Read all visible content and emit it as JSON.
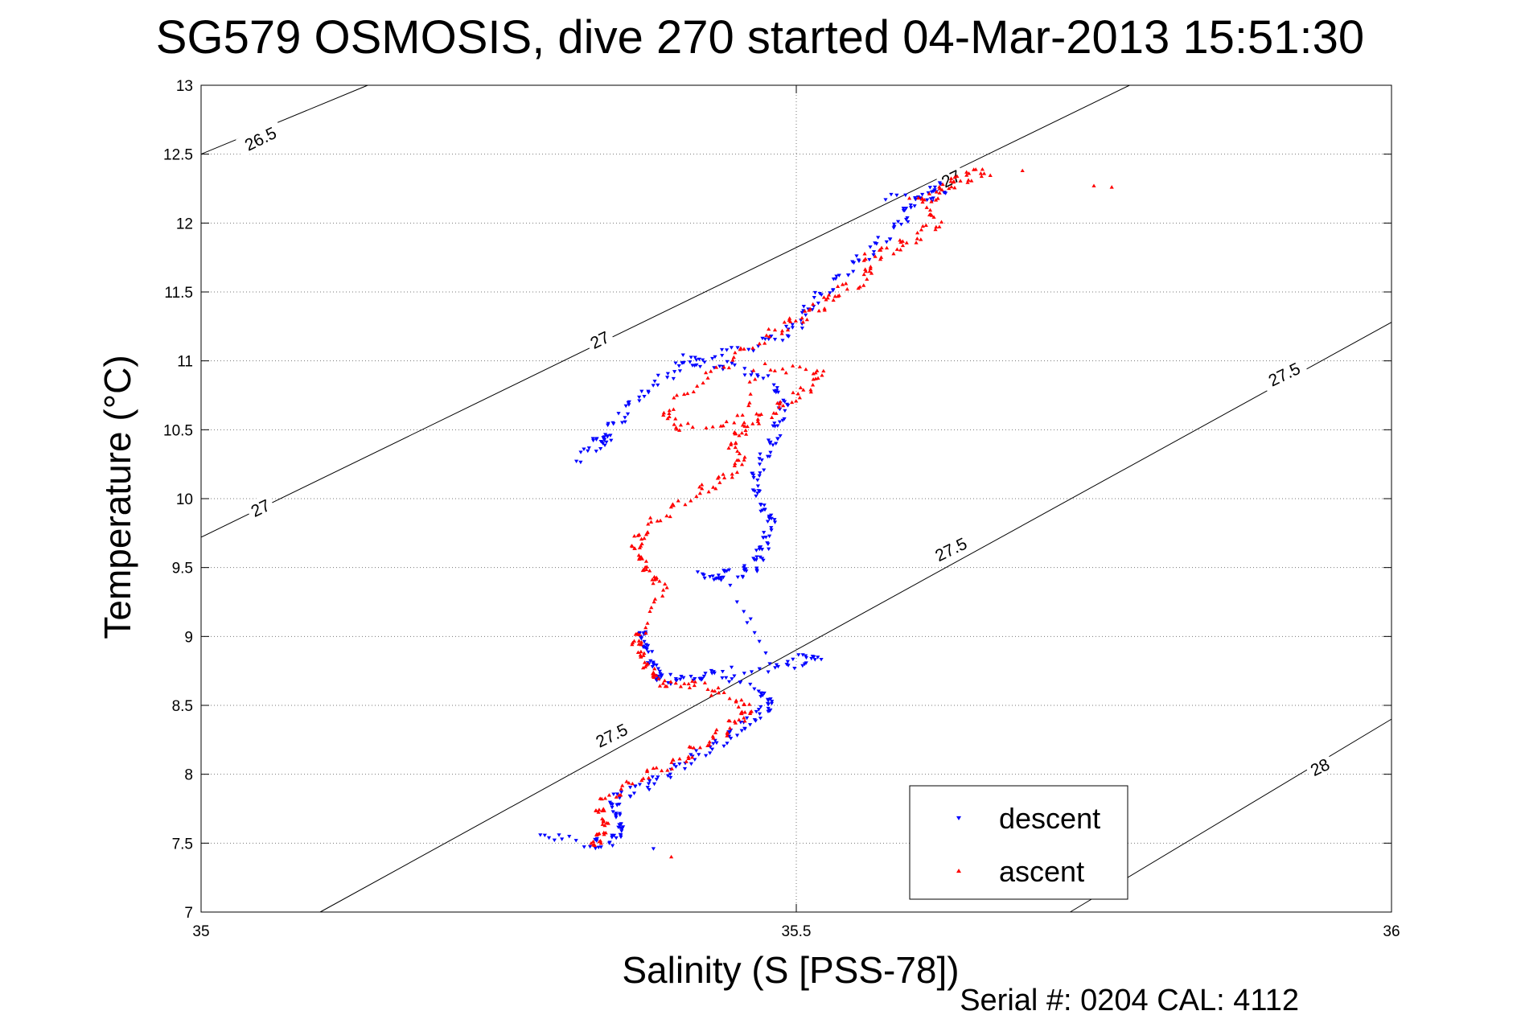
{
  "chart_data": {
    "type": "scatter",
    "title": "SG579 OSMOSIS, dive 270 started 04-Mar-2013 15:51:30",
    "xlabel": "Salinity (S [PSS-78])",
    "ylabel": "Temperature (°C)",
    "xlim": [
      35,
      36
    ],
    "ylim": [
      7,
      13
    ],
    "xticks": [
      35,
      35.5,
      36
    ],
    "xtick_labels": [
      "35",
      "35.5",
      "36"
    ],
    "yticks": [
      7,
      7.5,
      8,
      8.5,
      9,
      9.5,
      10,
      10.5,
      11,
      11.5,
      12,
      12.5,
      13
    ],
    "ytick_labels": [
      "7",
      "7.5",
      "8",
      "8.5",
      "9",
      "9.5",
      "10",
      "10.5",
      "11",
      "11.5",
      "12",
      "12.5",
      "13"
    ],
    "grid": true,
    "legend": "bottom-right",
    "footer": "Serial #: 0204  CAL: 4112",
    "density_contours": {
      "color": "#000000",
      "lines": [
        {
          "level": "26.5",
          "points": [
            [
              35.0,
              12.5
            ],
            [
              35.14,
              13.0
            ]
          ]
        },
        {
          "level": "27",
          "points": [
            [
              35.0,
              9.72
            ],
            [
              35.78,
              13.0
            ]
          ]
        },
        {
          "level": "27.5",
          "points": [
            [
              35.1,
              7.0
            ],
            [
              36.0,
              11.28
            ]
          ]
        },
        {
          "level": "28",
          "points": [
            [
              35.73,
              7.0
            ],
            [
              36.0,
              8.4
            ]
          ]
        }
      ],
      "labels": [
        {
          "text": "26.5",
          "x": 35.05,
          "y": 12.61,
          "angle": -26
        },
        {
          "text": "27",
          "x": 35.05,
          "y": 9.93,
          "angle": -26
        },
        {
          "text": "27",
          "x": 35.335,
          "y": 11.15,
          "angle": -26
        },
        {
          "text": "27",
          "x": 35.63,
          "y": 12.32,
          "angle": -26
        },
        {
          "text": "27.5",
          "x": 35.345,
          "y": 8.28,
          "angle": -26
        },
        {
          "text": "27.5",
          "x": 35.63,
          "y": 9.63,
          "angle": -26
        },
        {
          "text": "27.5",
          "x": 35.91,
          "y": 10.9,
          "angle": -26
        },
        {
          "text": "28",
          "x": 35.94,
          "y": 8.05,
          "angle": -26
        }
      ]
    },
    "series": [
      {
        "name": "descent",
        "color": "#0000ff",
        "marker": "triangle-down",
        "path": [
          [
            35.285,
            7.56
          ],
          [
            35.33,
            7.49
          ],
          [
            35.345,
            7.52
          ],
          [
            35.355,
            7.6
          ],
          [
            35.35,
            7.7
          ],
          [
            35.345,
            7.8
          ],
          [
            35.36,
            7.87
          ],
          [
            35.38,
            7.95
          ],
          [
            35.4,
            8.05
          ],
          [
            35.42,
            8.15
          ],
          [
            35.44,
            8.25
          ],
          [
            35.455,
            8.35
          ],
          [
            35.47,
            8.45
          ],
          [
            35.48,
            8.52
          ],
          [
            35.47,
            8.6
          ],
          [
            35.44,
            8.72
          ],
          [
            35.41,
            8.7
          ],
          [
            35.385,
            8.68
          ],
          [
            35.378,
            8.8
          ],
          [
            35.372,
            8.95
          ],
          [
            35.37,
            9.05
          ],
          [
            35.385,
            8.68
          ],
          [
            35.44,
            8.74
          ],
          [
            35.5,
            8.8
          ],
          [
            35.52,
            8.86
          ],
          [
            35.48,
            8.8
          ],
          [
            35.44,
            9.42
          ],
          [
            35.42,
            9.45
          ],
          [
            35.45,
            9.46
          ],
          [
            35.465,
            9.5
          ],
          [
            35.47,
            9.6
          ],
          [
            35.475,
            9.72
          ],
          [
            35.48,
            9.85
          ],
          [
            35.47,
            9.95
          ],
          [
            35.465,
            10.1
          ],
          [
            35.47,
            10.25
          ],
          [
            35.48,
            10.4
          ],
          [
            35.485,
            10.55
          ],
          [
            35.49,
            10.7
          ],
          [
            35.48,
            10.85
          ],
          [
            35.45,
            10.95
          ],
          [
            35.42,
            11.0
          ],
          [
            35.4,
            10.95
          ],
          [
            35.37,
            10.75
          ],
          [
            35.35,
            10.55
          ],
          [
            35.33,
            10.4
          ],
          [
            35.345,
            10.45
          ],
          [
            35.315,
            10.28
          ],
          [
            35.4,
            11.0
          ],
          [
            35.44,
            11.05
          ],
          [
            35.48,
            11.15
          ],
          [
            35.5,
            11.25
          ],
          [
            35.51,
            11.4
          ],
          [
            35.53,
            11.55
          ],
          [
            35.55,
            11.7
          ],
          [
            35.57,
            11.85
          ],
          [
            35.59,
            12.0
          ],
          [
            35.595,
            12.15
          ],
          [
            35.615,
            12.2
          ],
          [
            35.625,
            12.27
          ],
          [
            35.575,
            12.17
          ]
        ],
        "extra": [
          [
            35.285,
            7.56
          ],
          [
            35.38,
            7.46
          ]
        ]
      },
      {
        "name": "ascent",
        "color": "#ff0000",
        "marker": "triangle-up",
        "path": [
          [
            35.33,
            7.45
          ],
          [
            35.335,
            7.55
          ],
          [
            35.34,
            7.65
          ],
          [
            35.333,
            7.75
          ],
          [
            35.35,
            7.88
          ],
          [
            35.375,
            8.0
          ],
          [
            35.4,
            8.1
          ],
          [
            35.42,
            8.2
          ],
          [
            35.44,
            8.32
          ],
          [
            35.455,
            8.42
          ],
          [
            35.46,
            8.48
          ],
          [
            35.435,
            8.6
          ],
          [
            35.41,
            8.66
          ],
          [
            35.385,
            8.65
          ],
          [
            35.377,
            8.75
          ],
          [
            35.372,
            8.85
          ],
          [
            35.365,
            8.95
          ],
          [
            35.37,
            9.03
          ],
          [
            35.39,
            9.38
          ],
          [
            35.375,
            9.45
          ],
          [
            35.37,
            9.55
          ],
          [
            35.365,
            9.65
          ],
          [
            35.37,
            9.75
          ],
          [
            35.39,
            9.9
          ],
          [
            35.42,
            10.05
          ],
          [
            35.44,
            10.15
          ],
          [
            35.455,
            10.28
          ],
          [
            35.445,
            10.42
          ],
          [
            35.455,
            10.5
          ],
          [
            35.47,
            10.58
          ],
          [
            35.49,
            10.68
          ],
          [
            35.51,
            10.8
          ],
          [
            35.52,
            10.93
          ],
          [
            35.47,
            10.95
          ],
          [
            35.45,
            10.55
          ],
          [
            35.4,
            10.5
          ],
          [
            35.39,
            10.62
          ],
          [
            35.42,
            10.85
          ],
          [
            35.45,
            11.05
          ],
          [
            35.48,
            11.2
          ],
          [
            35.5,
            11.3
          ],
          [
            35.52,
            11.4
          ],
          [
            35.535,
            11.5
          ],
          [
            35.56,
            11.6
          ],
          [
            35.56,
            11.75
          ],
          [
            35.58,
            11.8
          ],
          [
            35.6,
            11.9
          ],
          [
            35.62,
            12.0
          ],
          [
            35.605,
            12.15
          ],
          [
            35.625,
            12.25
          ],
          [
            35.64,
            12.32
          ],
          [
            35.66,
            12.38
          ],
          [
            35.595,
            12.18
          ]
        ],
        "extra": [
          [
            35.655,
            12.36
          ],
          [
            35.69,
            12.38
          ],
          [
            35.75,
            12.27
          ],
          [
            35.765,
            12.26
          ],
          [
            35.395,
            7.4
          ]
        ]
      }
    ]
  }
}
